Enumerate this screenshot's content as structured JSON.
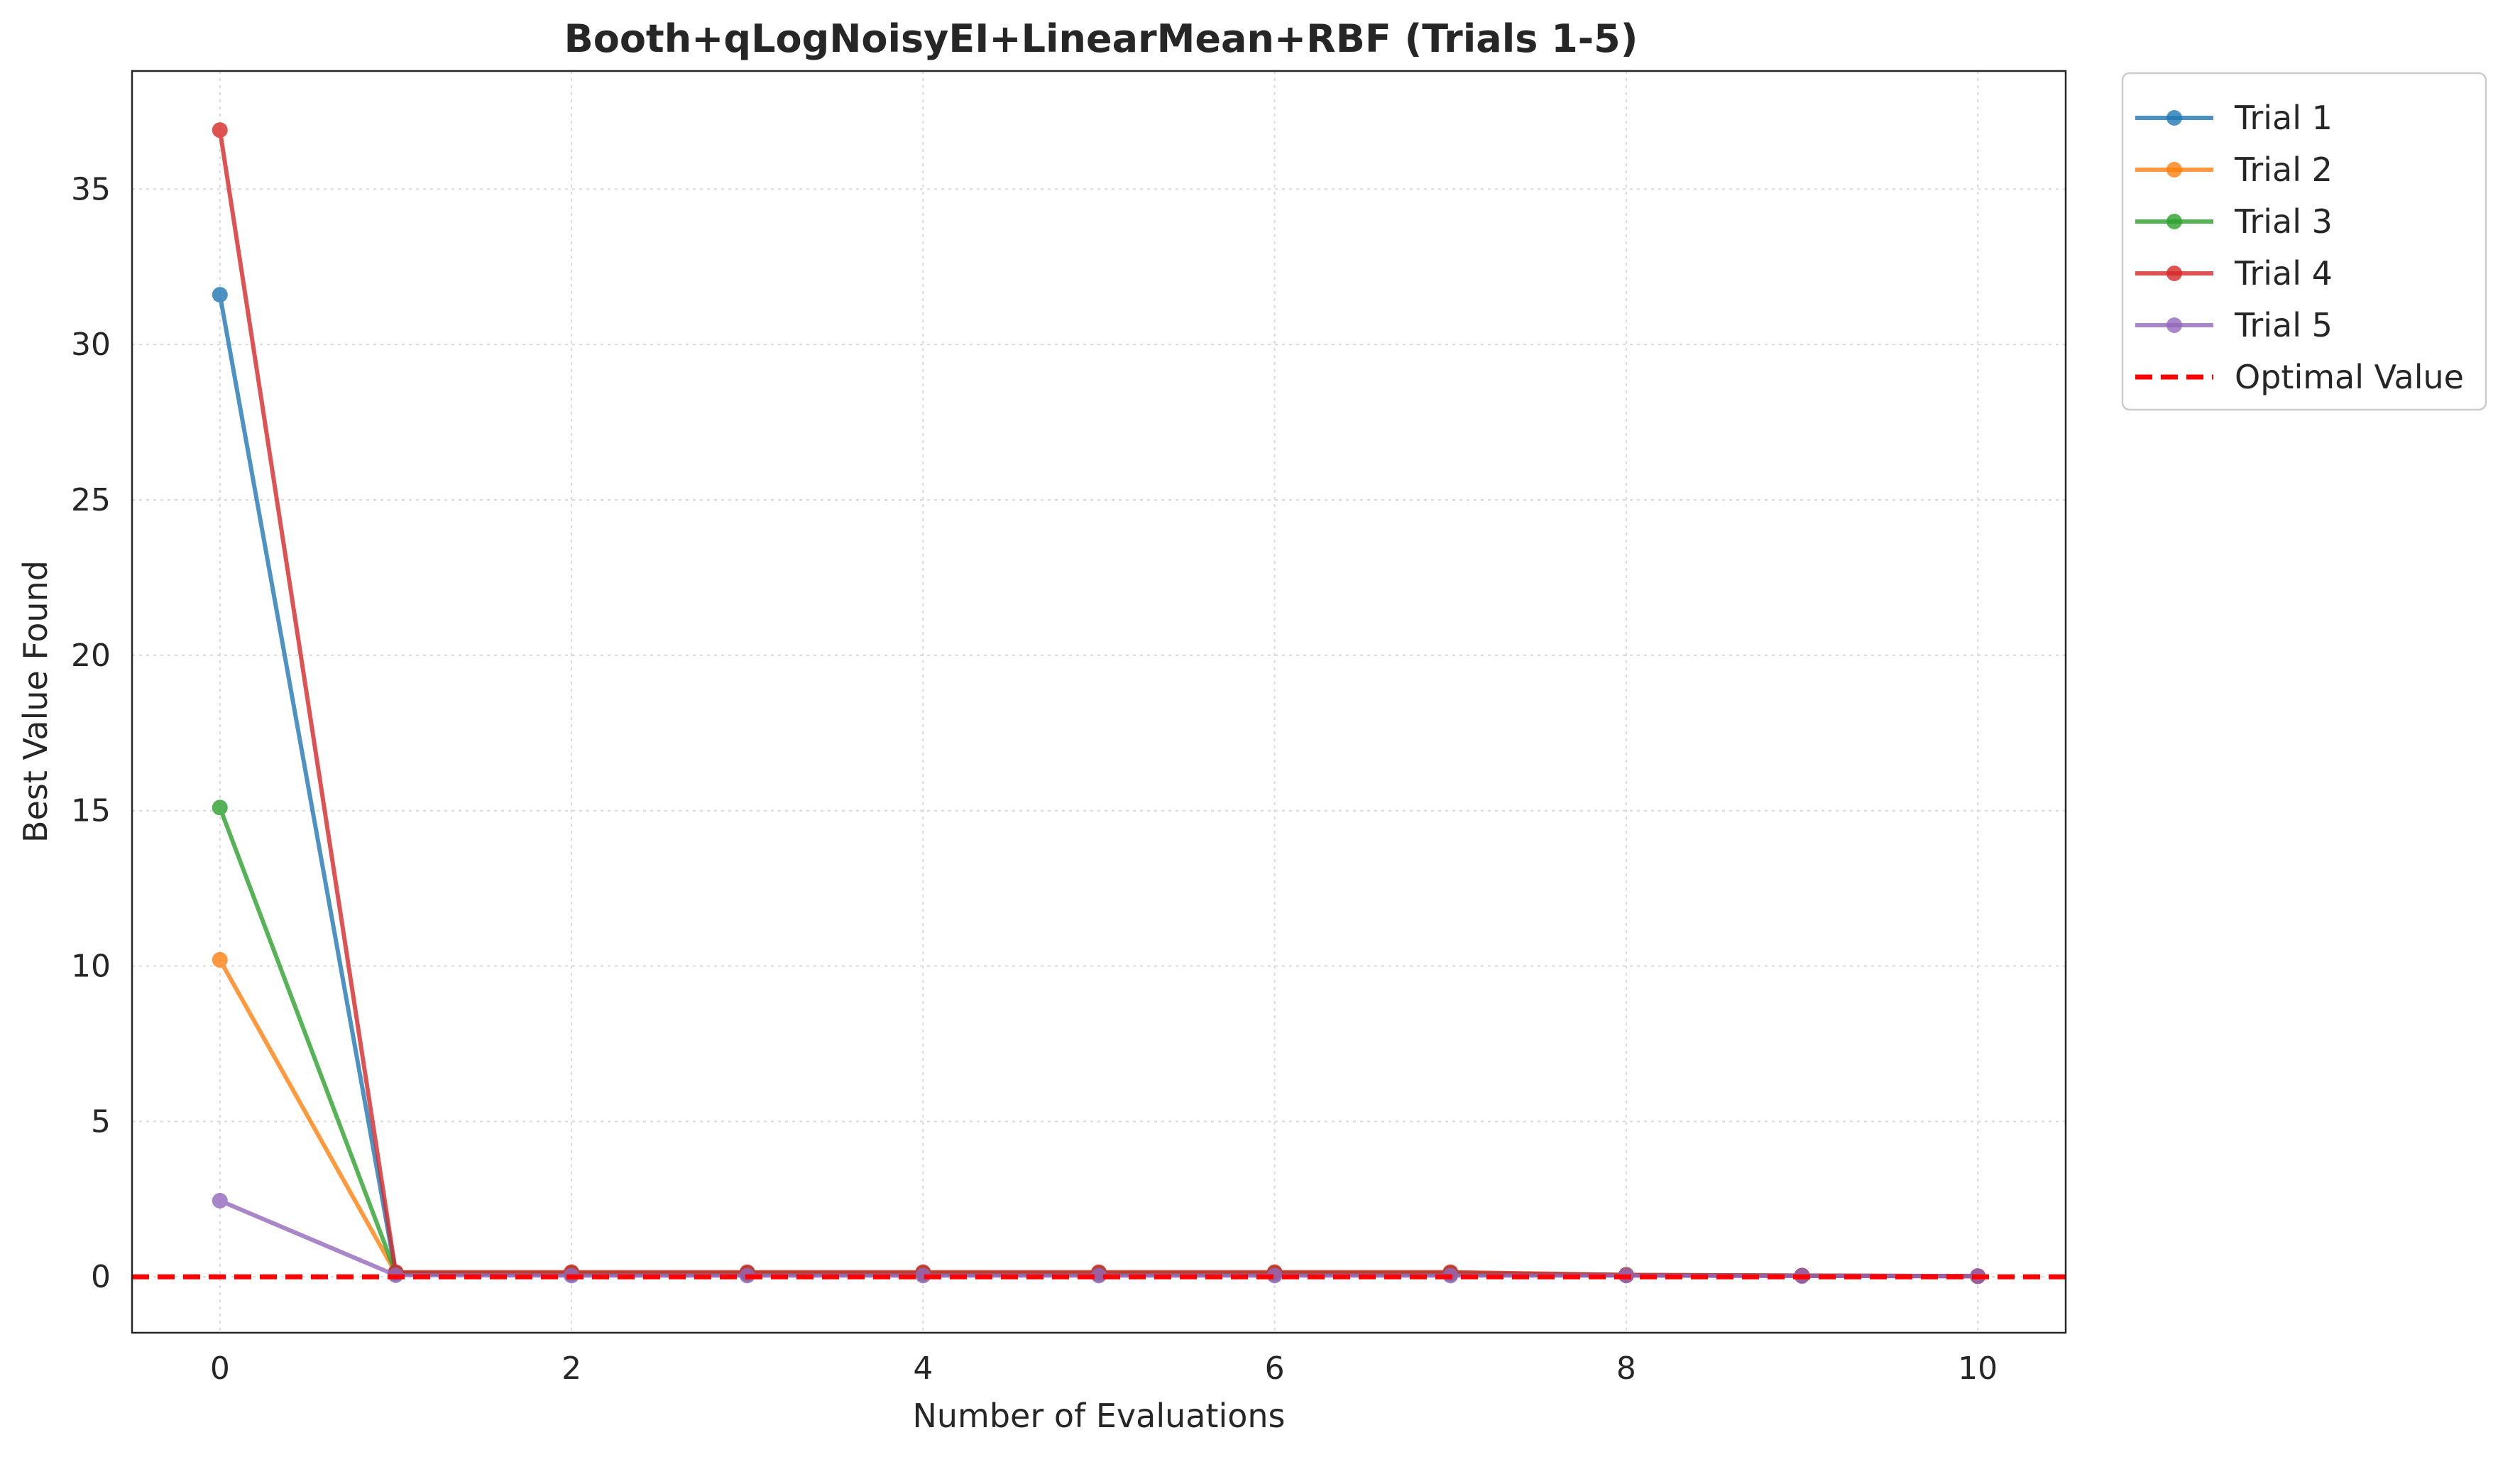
{
  "chart_data": {
    "type": "line",
    "title": "Booth+qLogNoisyEI+LinearMean+RBF (Trials 1-5)",
    "xlabel": "Number of Evaluations",
    "ylabel": "Best Value Found",
    "xlim": [
      -0.5,
      10.5
    ],
    "ylim": [
      -1.8,
      38.8
    ],
    "xticks": [
      0,
      2,
      4,
      6,
      8,
      10
    ],
    "yticks": [
      0,
      5,
      10,
      15,
      20,
      25,
      30,
      35
    ],
    "grid": true,
    "legend_position": "outside-top-right",
    "x": [
      0,
      1,
      2,
      3,
      4,
      5,
      6,
      7,
      8,
      9,
      10
    ],
    "series": [
      {
        "name": "Trial 1",
        "color": "#1f77b4",
        "values": [
          31.6,
          0.1,
          0.08,
          0.08,
          0.08,
          0.08,
          0.08,
          0.08,
          0.05,
          0.03,
          0.02
        ]
      },
      {
        "name": "Trial 2",
        "color": "#ff7f0e",
        "values": [
          10.2,
          0.12,
          0.1,
          0.1,
          0.1,
          0.1,
          0.1,
          0.1,
          0.06,
          0.04,
          0.02
        ]
      },
      {
        "name": "Trial 3",
        "color": "#2ca02c",
        "values": [
          15.1,
          0.12,
          0.12,
          0.12,
          0.12,
          0.12,
          0.12,
          0.12,
          0.06,
          0.04,
          0.02
        ]
      },
      {
        "name": "Trial 4",
        "color": "#d62728",
        "values": [
          36.9,
          0.15,
          0.15,
          0.15,
          0.15,
          0.15,
          0.15,
          0.15,
          0.06,
          0.04,
          0.02
        ]
      },
      {
        "name": "Trial 5",
        "color": "#9467bd",
        "values": [
          2.45,
          0.05,
          0.04,
          0.04,
          0.04,
          0.04,
          0.04,
          0.04,
          0.04,
          0.03,
          0.02
        ]
      }
    ],
    "reference_line": {
      "name": "Optimal Value",
      "value": 0,
      "color": "#ff0000",
      "style": "dashed"
    }
  }
}
